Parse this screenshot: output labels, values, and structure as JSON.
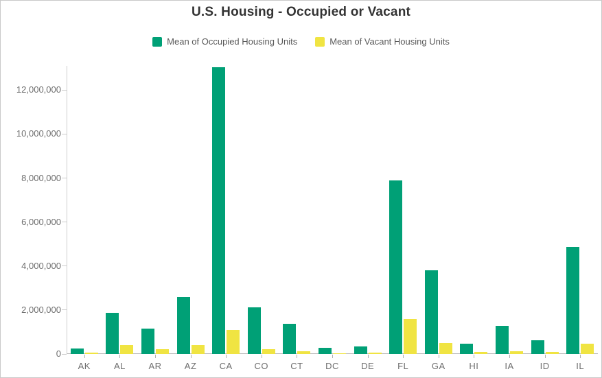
{
  "header": {
    "title": "U.S. Housing - Occupied or Vacant"
  },
  "chart_data": {
    "type": "bar",
    "title": "U.S. Housing - Occupied or Vacant",
    "categories": [
      "AK",
      "AL",
      "AR",
      "AZ",
      "CA",
      "CO",
      "CT",
      "DC",
      "DE",
      "FL",
      "GA",
      "HI",
      "IA",
      "ID",
      "IL"
    ],
    "series": [
      {
        "name": "Mean of Occupied Housing Units",
        "key": "occupied",
        "color": "#00A076",
        "values": [
          255000,
          1870000,
          1160000,
          2600000,
          13050000,
          2110000,
          1370000,
          270000,
          345000,
          7900000,
          3800000,
          465000,
          1280000,
          625000,
          4860000
        ]
      },
      {
        "name": "Mean of Vacant Housing Units",
        "key": "vacant",
        "color": "#F0E442",
        "values": [
          60000,
          390000,
          210000,
          390000,
          1090000,
          210000,
          130000,
          30000,
          70000,
          1600000,
          490000,
          80000,
          130000,
          90000,
          460000
        ]
      }
    ],
    "xlabel": "",
    "ylabel": "",
    "ylim": [
      0,
      13100000
    ],
    "yticks": [
      0,
      2000000,
      4000000,
      6000000,
      8000000,
      10000000,
      12000000
    ],
    "ytick_labels": [
      "0",
      "2,000,000",
      "4,000,000",
      "6,000,000",
      "8,000,000",
      "10,000,000",
      "12,000,000"
    ],
    "grid": false,
    "legend_position": "top"
  },
  "style": {
    "axis_line": "#cccccc",
    "baseline": "#b9b9b9",
    "tick_text": "#6e6e6e",
    "title_text": "#333333",
    "legend_text": "#595959",
    "frame_border": "#c9c9c9"
  }
}
